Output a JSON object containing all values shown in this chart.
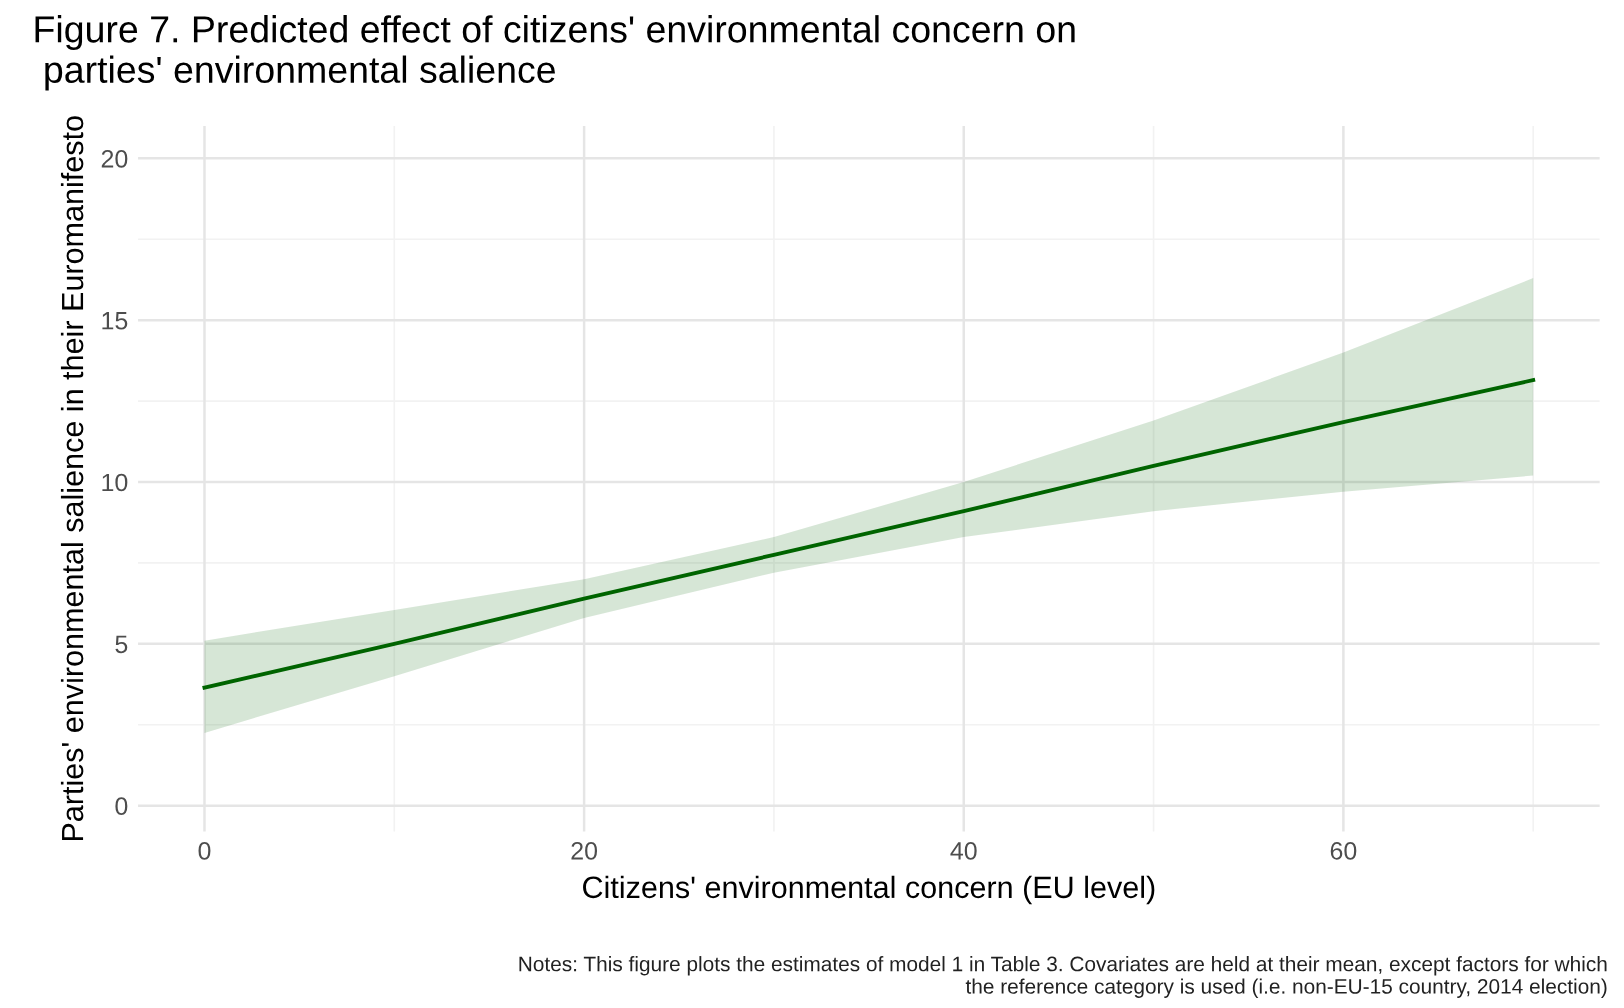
{
  "chart_data": {
    "type": "line",
    "title": "Figure 7. Predicted effect of citizens' environmental concern on\n parties' environmental salience",
    "xlabel": "Citizens' environmental concern (EU level)",
    "ylabel": "Parties' environmental salience in their Euromanifesto",
    "x": [
      0,
      10,
      20,
      30,
      40,
      50,
      60,
      70
    ],
    "series": [
      {
        "color": "#006400",
        "values": [
          3.65,
          5.0,
          6.4,
          7.75,
          9.1,
          10.5,
          11.85,
          13.15
        ],
        "lower": [
          2.25,
          4.0,
          5.8,
          7.2,
          8.3,
          9.1,
          9.7,
          10.2
        ],
        "upper": [
          5.1,
          6.05,
          7.0,
          8.3,
          10.0,
          11.9,
          14.0,
          16.3
        ]
      }
    ],
    "xlim": [
      -3.5,
      73.5
    ],
    "ylim": [
      -0.8,
      21
    ],
    "xticks": [
      0,
      20,
      40,
      60
    ],
    "yticks": [
      0,
      5,
      10,
      15,
      20
    ],
    "grid": true,
    "marker": "none",
    "line_style": "solid",
    "annotations": [
      "Notes: This figure plots the estimates of model 1 in Table 3. Covariates are held at their mean, except factors for which\nthe reference category is used (i.e. non-EU-15 country, 2014 election)"
    ]
  }
}
